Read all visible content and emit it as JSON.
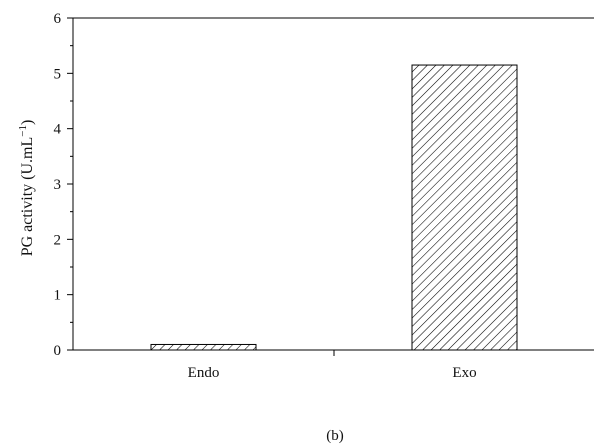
{
  "chart_data": {
    "type": "bar",
    "categories": [
      "Endo",
      "Exo"
    ],
    "values": [
      0.1,
      5.15
    ],
    "ylabel_main": "PG activity (U.mL",
    "ylabel_sup": "−1",
    "ylabel_close": ")",
    "ylim": [
      0,
      6
    ],
    "yticks": [
      "0",
      "1",
      "2",
      "3",
      "4",
      "5",
      "6"
    ],
    "bar_pattern": "diagonal-hatch",
    "grid": false,
    "legend": "none"
  },
  "panel_label": "(b)",
  "colors": {
    "axis": "#000000",
    "bar_fill": "#ffffff",
    "hatch": "#000000"
  }
}
